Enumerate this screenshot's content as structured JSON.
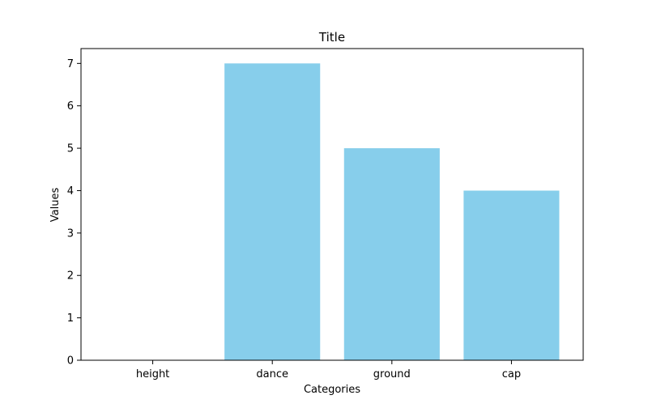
{
  "chart_data": {
    "type": "bar",
    "title": "Title",
    "xlabel": "Categories",
    "ylabel": "Values",
    "categories": [
      "height",
      "dance",
      "ground",
      "cap"
    ],
    "values": [
      0,
      7,
      5,
      4
    ],
    "ylim": [
      0,
      7.35
    ],
    "yticks": [
      "0",
      "1",
      "2",
      "3",
      "4",
      "5",
      "6",
      "7"
    ],
    "bar_color": "#87CEEB",
    "grid": false,
    "legend": "none"
  }
}
